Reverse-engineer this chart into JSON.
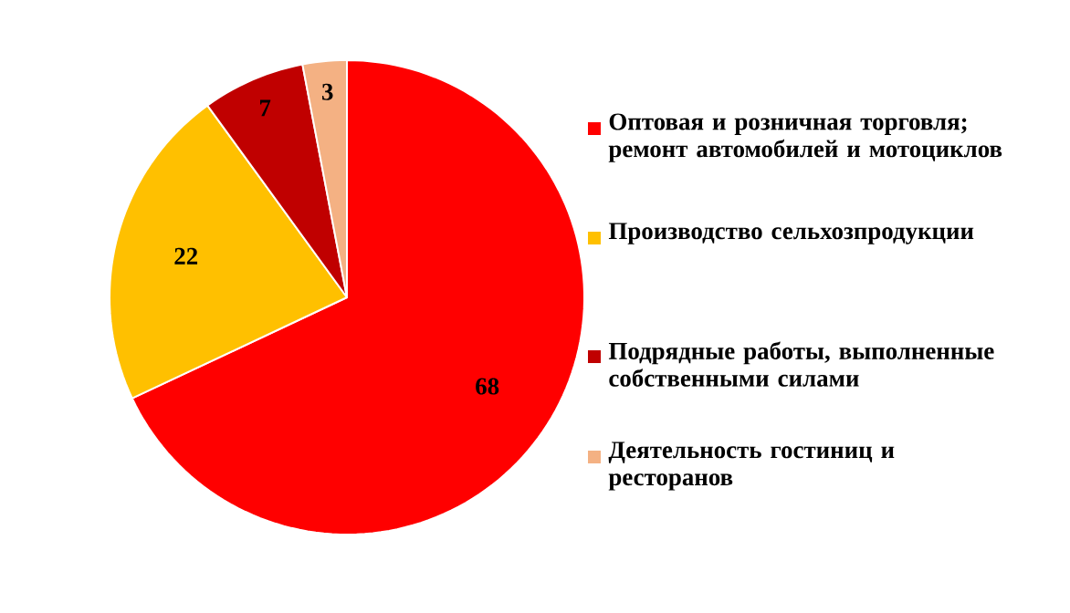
{
  "chart_data": {
    "type": "pie",
    "categories": [
      "Оптовая и розничная торговля; ремонт автомобилей и мотоциклов",
      "Производство сельхозпродукции",
      "Подрядные работы, выполненные собственными силами",
      "Деятельность гостиниц и ресторанов"
    ],
    "values": [
      68,
      22,
      7,
      3
    ],
    "colors": [
      "#ff0000",
      "#ffc000",
      "#c00000",
      "#f4b183"
    ],
    "data_labels": true,
    "legend": "right"
  }
}
